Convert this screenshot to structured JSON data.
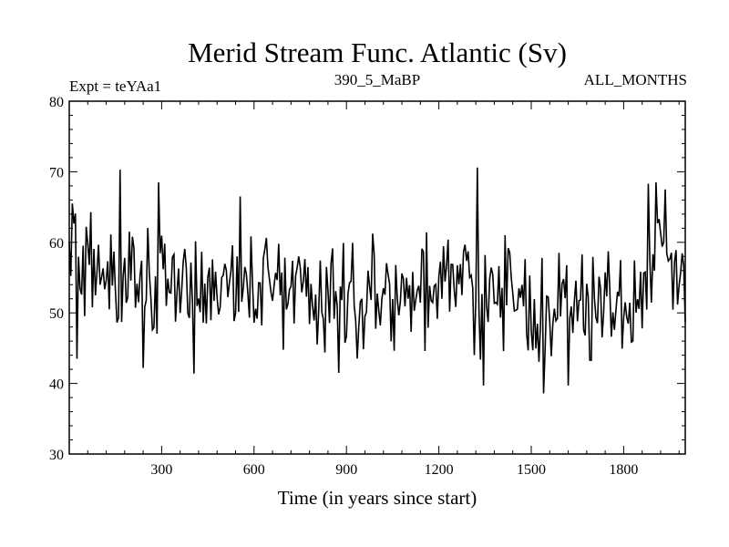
{
  "chart_data": {
    "type": "line",
    "title": "Merid Stream Func. Atlantic (Sv)",
    "subtitle_left": "Expt = teYAa1",
    "subtitle_center": "390_5_MaBP",
    "subtitle_right": "ALL_MONTHS",
    "xlabel": "Time (in years since start)",
    "ylabel": "",
    "xlim": [
      0,
      2000
    ],
    "ylim": [
      30,
      80
    ],
    "xticks": [
      300,
      600,
      900,
      1200,
      1500,
      1800
    ],
    "xtick_labels": [
      "300",
      "600",
      "900",
      "1200",
      "1500",
      "1800"
    ],
    "yticks": [
      30,
      40,
      50,
      60,
      70,
      80
    ],
    "ytick_labels": [
      "30",
      "40",
      "50",
      "60",
      "70",
      "80"
    ],
    "grid": false,
    "series": [
      {
        "name": "Merid Stream Func. Atlantic",
        "color": "#000000",
        "sample_step": 5,
        "x_start": 0,
        "trend_anchors_x": [
          0,
          100,
          300,
          500,
          700,
          900,
          1100,
          1300,
          1500,
          1700,
          1850,
          1870,
          1950,
          2000
        ],
        "trend_anchors_y": [
          56.5,
          55.5,
          55.0,
          54.0,
          54.0,
          52.5,
          53.0,
          53.5,
          51.0,
          51.0,
          51.5,
          57.5,
          57.5,
          56.0
        ],
        "noise_amplitude": 4.2,
        "peaks": [
          {
            "x": 10,
            "y": 65.5
          },
          {
            "x": 165,
            "y": 70.3
          },
          {
            "x": 290,
            "y": 68.5
          },
          {
            "x": 555,
            "y": 66.5
          },
          {
            "x": 1325,
            "y": 70.6
          },
          {
            "x": 1880,
            "y": 68.3
          },
          {
            "x": 1905,
            "y": 68.5
          },
          {
            "x": 1935,
            "y": 67.5
          }
        ],
        "troughs": [
          {
            "x": 25,
            "y": 43.5
          },
          {
            "x": 240,
            "y": 42.2
          },
          {
            "x": 405,
            "y": 41.4
          },
          {
            "x": 875,
            "y": 41.5
          },
          {
            "x": 1345,
            "y": 39.7
          },
          {
            "x": 1540,
            "y": 38.6
          },
          {
            "x": 1620,
            "y": 39.7
          }
        ]
      }
    ]
  }
}
